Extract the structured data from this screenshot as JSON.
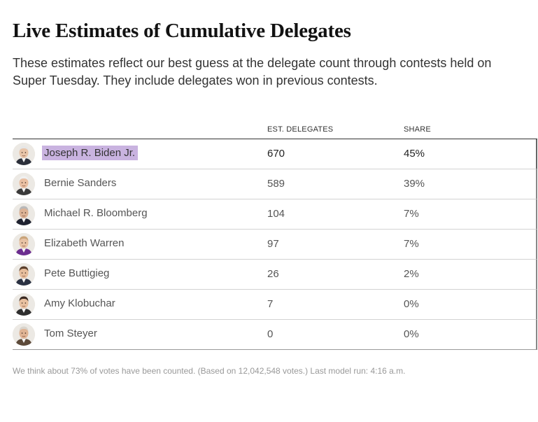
{
  "title": "Live Estimates of Cumulative Delegates",
  "subtitle": "These estimates reflect our best guess at the delegate count through contests held on Super Tuesday. They include delegates won in previous contests.",
  "table": {
    "headers": {
      "delegates": "EST. DELEGATES",
      "share": "SHARE"
    },
    "rows": [
      {
        "name": "Joseph R. Biden Jr.",
        "delegates": "670",
        "share": "45%",
        "highlighted": true,
        "avatar": "biden-portrait",
        "hair": "#e6e6e6",
        "suit": "#2b2f3a",
        "tone": "#e8c4a8"
      },
      {
        "name": "Bernie Sanders",
        "delegates": "589",
        "share": "39%",
        "avatar": "sanders-portrait",
        "hair": "#f0f0f0",
        "suit": "#3a3a3a",
        "tone": "#e9bfa2"
      },
      {
        "name": "Michael R. Bloomberg",
        "delegates": "104",
        "share": "7%",
        "avatar": "bloomberg-portrait",
        "hair": "#b8b8b8",
        "suit": "#1f2230",
        "tone": "#dcb295"
      },
      {
        "name": "Elizabeth Warren",
        "delegates": "97",
        "share": "7%",
        "avatar": "warren-portrait",
        "hair": "#c9a47a",
        "suit": "#6b2d8f",
        "tone": "#e8c2a4"
      },
      {
        "name": "Pete Buttigieg",
        "delegates": "26",
        "share": "2%",
        "avatar": "buttigieg-portrait",
        "hair": "#5a3e2b",
        "suit": "#2a3142",
        "tone": "#e6bd9c"
      },
      {
        "name": "Amy Klobuchar",
        "delegates": "7",
        "share": "0%",
        "avatar": "klobuchar-portrait",
        "hair": "#3b2a22",
        "suit": "#2e2e2e",
        "tone": "#e8c0a0"
      },
      {
        "name": "Tom Steyer",
        "delegates": "0",
        "share": "0%",
        "avatar": "steyer-portrait",
        "hair": "#d9d4cc",
        "suit": "#5d4a3a",
        "tone": "#dfb394"
      }
    ]
  },
  "footnote": "We think about 73% of votes have been counted. (Based on 12,042,548 votes.) Last model run: 4:16 a.m."
}
